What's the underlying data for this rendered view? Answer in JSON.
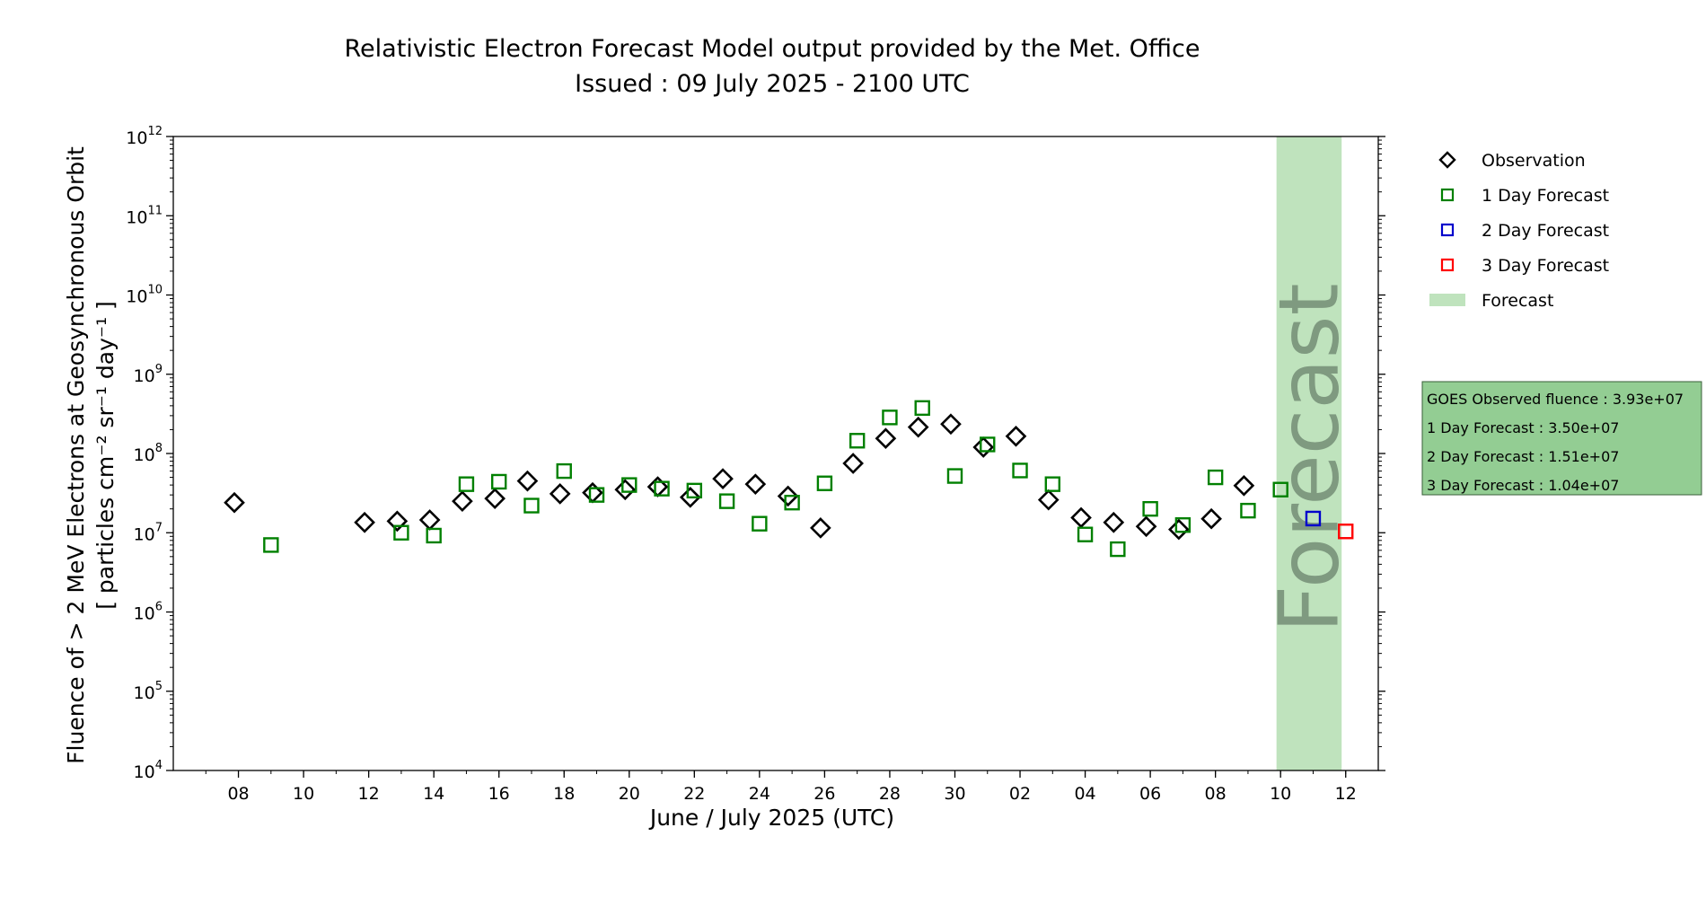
{
  "chart_data": {
    "type": "scatter",
    "title": "Relativistic Electron Forecast Model output provided by the Met. Office",
    "subtitle": "Issued : 09 July 2025 - 2100 UTC",
    "xlabel": "June / July 2025 (UTC)",
    "ylabel_line1": "Fluence of > 2 MeV Electrons at Geosynchronous Orbit",
    "ylabel_line2": "[ particles cm⁻² sr⁻¹ day⁻¹ ]",
    "y_scale": "log",
    "ylim": [
      10000,
      1000000000000
    ],
    "xlim": [
      "2025-06-06",
      "2025-07-13"
    ],
    "x_ticks": [
      {
        "date": "2025-06-08",
        "label": "08"
      },
      {
        "date": "2025-06-10",
        "label": "10"
      },
      {
        "date": "2025-06-12",
        "label": "12"
      },
      {
        "date": "2025-06-14",
        "label": "14"
      },
      {
        "date": "2025-06-16",
        "label": "16"
      },
      {
        "date": "2025-06-18",
        "label": "18"
      },
      {
        "date": "2025-06-20",
        "label": "20"
      },
      {
        "date": "2025-06-22",
        "label": "22"
      },
      {
        "date": "2025-06-24",
        "label": "24"
      },
      {
        "date": "2025-06-26",
        "label": "26"
      },
      {
        "date": "2025-06-28",
        "label": "28"
      },
      {
        "date": "2025-06-30",
        "label": "30"
      },
      {
        "date": "2025-07-02",
        "label": "02"
      },
      {
        "date": "2025-07-04",
        "label": "04"
      },
      {
        "date": "2025-07-06",
        "label": "06"
      },
      {
        "date": "2025-07-08",
        "label": "08"
      },
      {
        "date": "2025-07-10",
        "label": "10"
      },
      {
        "date": "2025-07-12",
        "label": "12"
      }
    ],
    "y_ticks": [
      {
        "value": 10000,
        "base": "10",
        "exp": "4"
      },
      {
        "value": 100000,
        "base": "10",
        "exp": "5"
      },
      {
        "value": 1000000,
        "base": "10",
        "exp": "6"
      },
      {
        "value": 10000000,
        "base": "10",
        "exp": "7"
      },
      {
        "value": 100000000,
        "base": "10",
        "exp": "8"
      },
      {
        "value": 1000000000,
        "base": "10",
        "exp": "9"
      },
      {
        "value": 10000000000,
        "base": "10",
        "exp": "10"
      },
      {
        "value": 100000000000,
        "base": "10",
        "exp": "11"
      },
      {
        "value": 1000000000000,
        "base": "10",
        "exp": "12"
      }
    ],
    "forecast_band": {
      "start": "2025-07-09T21:00",
      "end": "2025-07-11T21:00",
      "label": "Forecast",
      "color": "#bfe3bd"
    },
    "series": [
      {
        "name": "Observation",
        "marker": "diamond",
        "color": "#000000",
        "points": [
          {
            "x": "2025-06-07T21:00",
            "y": 24000000
          },
          {
            "x": "2025-06-11T21:00",
            "y": 13500000
          },
          {
            "x": "2025-06-12T21:00",
            "y": 14000000
          },
          {
            "x": "2025-06-13T21:00",
            "y": 14500000
          },
          {
            "x": "2025-06-14T21:00",
            "y": 25000000
          },
          {
            "x": "2025-06-15T21:00",
            "y": 27000000
          },
          {
            "x": "2025-06-16T21:00",
            "y": 45000000
          },
          {
            "x": "2025-06-17T21:00",
            "y": 31000000
          },
          {
            "x": "2025-06-18T21:00",
            "y": 32000000
          },
          {
            "x": "2025-06-19T21:00",
            "y": 35000000
          },
          {
            "x": "2025-06-20T21:00",
            "y": 38000000
          },
          {
            "x": "2025-06-21T21:00",
            "y": 28000000
          },
          {
            "x": "2025-06-22T21:00",
            "y": 48000000
          },
          {
            "x": "2025-06-23T21:00",
            "y": 41000000
          },
          {
            "x": "2025-06-24T21:00",
            "y": 29000000
          },
          {
            "x": "2025-06-25T21:00",
            "y": 11500000
          },
          {
            "x": "2025-06-26T21:00",
            "y": 75000000
          },
          {
            "x": "2025-06-27T21:00",
            "y": 155000000
          },
          {
            "x": "2025-06-28T21:00",
            "y": 215000000
          },
          {
            "x": "2025-06-29T21:00",
            "y": 235000000
          },
          {
            "x": "2025-06-30T21:00",
            "y": 120000000
          },
          {
            "x": "2025-07-01T21:00",
            "y": 165000000
          },
          {
            "x": "2025-07-02T21:00",
            "y": 26000000
          },
          {
            "x": "2025-07-03T21:00",
            "y": 15500000
          },
          {
            "x": "2025-07-04T21:00",
            "y": 13500000
          },
          {
            "x": "2025-07-05T21:00",
            "y": 12000000
          },
          {
            "x": "2025-07-06T21:00",
            "y": 11000000
          },
          {
            "x": "2025-07-07T21:00",
            "y": 15000000
          },
          {
            "x": "2025-07-08T21:00",
            "y": 39300000
          }
        ]
      },
      {
        "name": "1 Day Forecast",
        "marker": "square",
        "color": "#008000",
        "points": [
          {
            "x": "2025-06-09T00:00",
            "y": 7000000
          },
          {
            "x": "2025-06-13T00:00",
            "y": 10000000
          },
          {
            "x": "2025-06-14T00:00",
            "y": 9200000
          },
          {
            "x": "2025-06-15T00:00",
            "y": 41000000
          },
          {
            "x": "2025-06-16T00:00",
            "y": 44000000
          },
          {
            "x": "2025-06-17T00:00",
            "y": 22000000
          },
          {
            "x": "2025-06-18T00:00",
            "y": 60000000
          },
          {
            "x": "2025-06-19T00:00",
            "y": 30000000
          },
          {
            "x": "2025-06-20T00:00",
            "y": 40000000
          },
          {
            "x": "2025-06-21T00:00",
            "y": 36000000
          },
          {
            "x": "2025-06-22T00:00",
            "y": 34000000
          },
          {
            "x": "2025-06-23T00:00",
            "y": 25000000
          },
          {
            "x": "2025-06-24T00:00",
            "y": 13000000
          },
          {
            "x": "2025-06-25T00:00",
            "y": 24000000
          },
          {
            "x": "2025-06-26T00:00",
            "y": 42000000
          },
          {
            "x": "2025-06-27T00:00",
            "y": 145000000
          },
          {
            "x": "2025-06-28T00:00",
            "y": 285000000
          },
          {
            "x": "2025-06-29T00:00",
            "y": 375000000
          },
          {
            "x": "2025-06-30T00:00",
            "y": 52000000
          },
          {
            "x": "2025-07-01T00:00",
            "y": 130000000
          },
          {
            "x": "2025-07-02T00:00",
            "y": 61000000
          },
          {
            "x": "2025-07-03T00:00",
            "y": 41000000
          },
          {
            "x": "2025-07-04T00:00",
            "y": 9500000
          },
          {
            "x": "2025-07-05T00:00",
            "y": 6200000
          },
          {
            "x": "2025-07-06T00:00",
            "y": 20000000
          },
          {
            "x": "2025-07-07T00:00",
            "y": 12500000
          },
          {
            "x": "2025-07-08T00:00",
            "y": 50000000
          },
          {
            "x": "2025-07-09T00:00",
            "y": 19000000
          },
          {
            "x": "2025-07-10T00:00",
            "y": 35000000
          }
        ]
      },
      {
        "name": "2 Day Forecast",
        "marker": "square",
        "color": "#0000cc",
        "points": [
          {
            "x": "2025-07-11T00:00",
            "y": 15100000
          }
        ]
      },
      {
        "name": "3 Day Forecast",
        "marker": "square",
        "color": "#ff0000",
        "points": [
          {
            "x": "2025-07-12T00:00",
            "y": 10400000
          }
        ]
      }
    ],
    "legend_position": "right",
    "legend": [
      {
        "label": "Observation",
        "marker": "diamond",
        "color": "#000000"
      },
      {
        "label": "1 Day Forecast",
        "marker": "square",
        "color": "#008000"
      },
      {
        "label": "2 Day Forecast",
        "marker": "square",
        "color": "#0000cc"
      },
      {
        "label": "3 Day Forecast",
        "marker": "square",
        "color": "#ff0000"
      },
      {
        "label": "Forecast",
        "marker": "band",
        "color": "#bfe3bd"
      }
    ],
    "info_box": {
      "background": "#93cd93",
      "lines": [
        "GOES Observed fluence : 3.93e+07",
        "1 Day Forecast : 3.50e+07",
        "2 Day Forecast : 1.51e+07",
        "3 Day Forecast : 1.04e+07"
      ]
    }
  }
}
